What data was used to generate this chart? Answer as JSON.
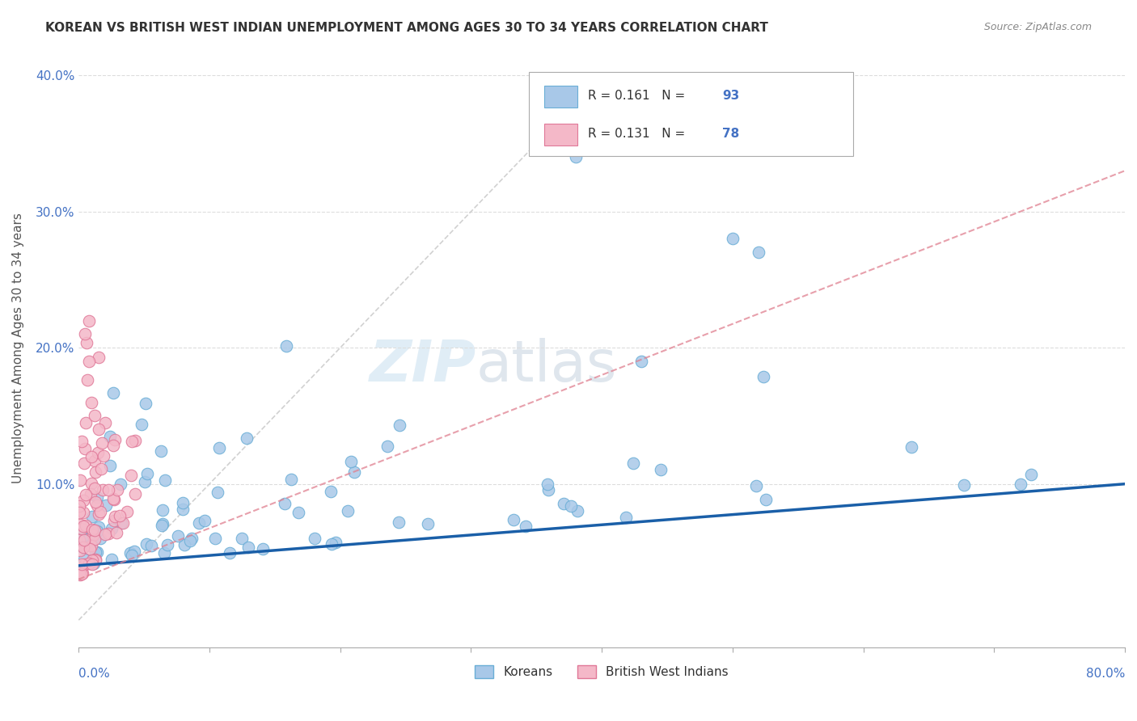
{
  "title": "KOREAN VS BRITISH WEST INDIAN UNEMPLOYMENT AMONG AGES 30 TO 34 YEARS CORRELATION CHART",
  "source": "Source: ZipAtlas.com",
  "ylabel": "Unemployment Among Ages 30 to 34 years",
  "xlim": [
    0.0,
    0.8
  ],
  "ylim": [
    -0.02,
    0.42
  ],
  "korean_color": "#a8c8e8",
  "korean_edge": "#6aaed6",
  "bwi_color": "#f4b8c8",
  "bwi_edge": "#e07898",
  "trend_korean_color": "#1a5fa8",
  "trend_bwi_color": "#e08090",
  "diag_color": "#cccccc",
  "legend_korean_R": "R = 0.161",
  "legend_korean_N": "N = 93",
  "legend_bwi_R": "R = 0.131",
  "legend_bwi_N": "N = 78",
  "watermark_zip": "ZIP",
  "watermark_atlas": "atlas",
  "axis_label_color": "#4472c4",
  "title_fontsize": 11,
  "source_fontsize": 9
}
